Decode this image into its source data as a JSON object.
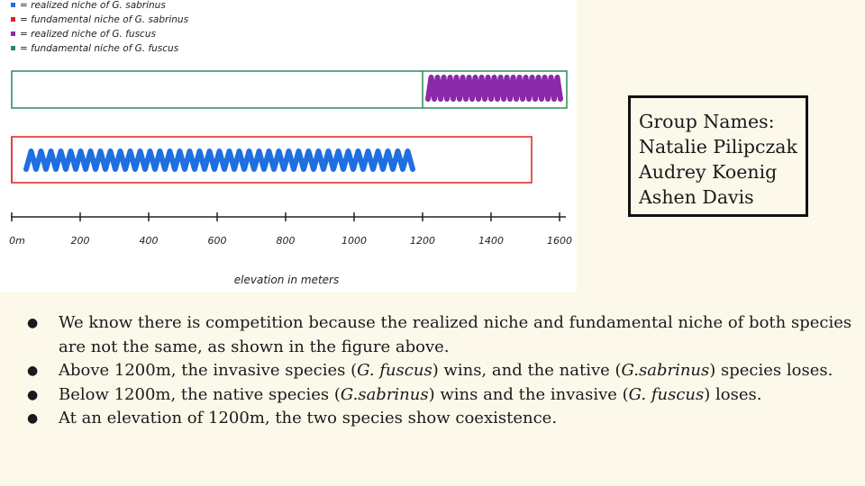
{
  "legend": [
    {
      "text": "= realized niche of G. sabrinus",
      "color": "#1e6fe0"
    },
    {
      "text": "= fundamental niche of G. sabrinus",
      "color": "#e02020"
    },
    {
      "text": "= realized niche of G. fuscus",
      "color": "#8a2aa8"
    },
    {
      "text": "= fundamental niche of G. fuscus",
      "color": "#2a8a5a"
    }
  ],
  "axis": {
    "ticks": [
      "0m",
      "200",
      "400",
      "600",
      "800",
      "1000",
      "1200",
      "1400",
      "1600"
    ],
    "label": "elevation in meters"
  },
  "niches": {
    "fuscus_fundamental": [
      0,
      1600
    ],
    "fuscus_realized": [
      1200,
      1600
    ],
    "sabrinus_fundamental": [
      0,
      1500
    ],
    "sabrinus_realized": [
      0,
      1200
    ]
  },
  "group": {
    "title": "Group Names:",
    "members": [
      "Natalie Pilipczak",
      "Audrey Koenig",
      "Ashen Davis"
    ]
  },
  "bullets": [
    {
      "parts": [
        "We know there is competition because the realized niche and fundamental niche of both species are not the same, as shown in the figure above."
      ]
    },
    {
      "parts": [
        "Above 1200m, the invasive species (",
        "G. fuscus",
        ") wins, and the native (",
        "G.sabrinus",
        ") species loses."
      ]
    },
    {
      "parts": [
        "Below 1200m, the native species (",
        "G.sabrinus",
        ") wins and the invasive (",
        "G. fuscus",
        ") loses."
      ]
    },
    {
      "parts": [
        "At an elevation of 1200m, the two species show coexistence."
      ]
    }
  ]
}
